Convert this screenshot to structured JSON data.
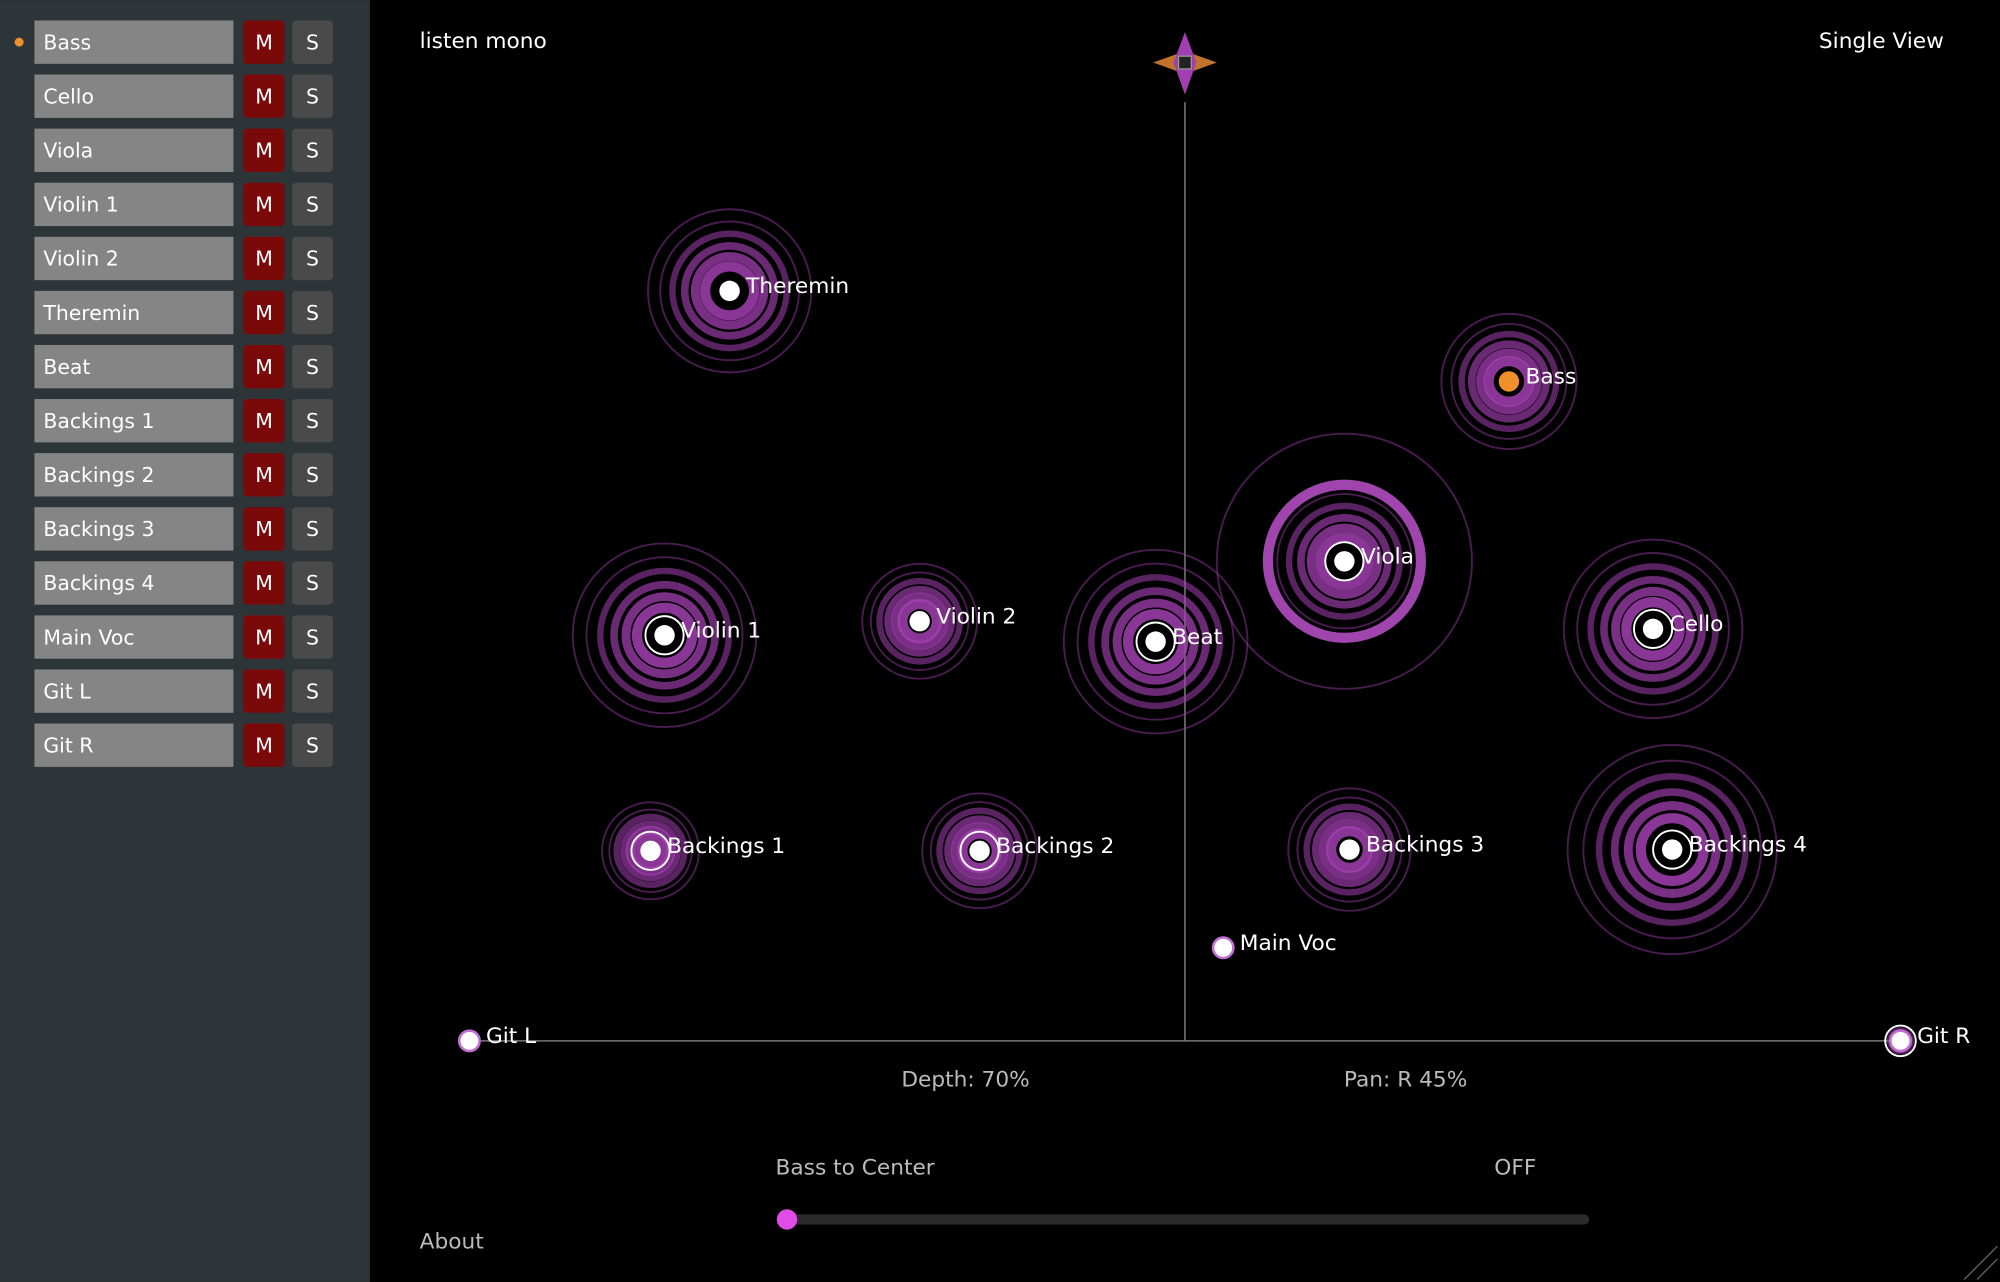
{
  "sidebar": {
    "tracks": [
      {
        "name": "Bass",
        "mute": "M",
        "solo": "S"
      },
      {
        "name": "Cello",
        "mute": "M",
        "solo": "S"
      },
      {
        "name": "Viola",
        "mute": "M",
        "solo": "S"
      },
      {
        "name": "Violin 1",
        "mute": "M",
        "solo": "S"
      },
      {
        "name": "Violin 2",
        "mute": "M",
        "solo": "S"
      },
      {
        "name": "Theremin",
        "mute": "M",
        "solo": "S"
      },
      {
        "name": "Beat",
        "mute": "M",
        "solo": "S"
      },
      {
        "name": "Backings 1",
        "mute": "M",
        "solo": "S"
      },
      {
        "name": "Backings 2",
        "mute": "M",
        "solo": "S"
      },
      {
        "name": "Backings 3",
        "mute": "M",
        "solo": "S"
      },
      {
        "name": "Backings 4",
        "mute": "M",
        "solo": "S"
      },
      {
        "name": "Main Voc",
        "mute": "M",
        "solo": "S"
      },
      {
        "name": "Git L",
        "mute": "M",
        "solo": "S"
      },
      {
        "name": "Git R",
        "mute": "M",
        "solo": "S"
      }
    ]
  },
  "header": {
    "mode": "listen mono",
    "view": "Single View"
  },
  "stage": {
    "nodes": [
      "Theremin",
      "Bass",
      "Viola",
      "Violin 1",
      "Violin 2",
      "Beat",
      "Cello",
      "Backings 1",
      "Backings 2",
      "Backings 3",
      "Backings 4",
      "Main Voc",
      "Git L",
      "Git R"
    ],
    "depth": "Depth: 70%",
    "pan": "Pan: R 45%"
  },
  "footer": {
    "control": "Bass to Center",
    "state": "OFF",
    "about": "About"
  }
}
